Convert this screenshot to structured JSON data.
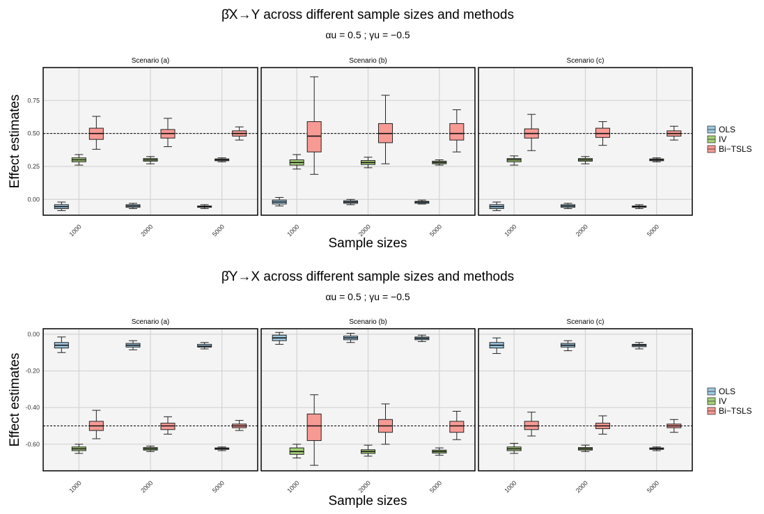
{
  "colors": {
    "OLS": "#9ec9e2",
    "IV": "#a6d279",
    "Bi-TSLS": "#f89a94",
    "panel_bg": "#f4f4f4",
    "grid": "#d3d3d3"
  },
  "chart_data": [
    {
      "type": "box",
      "title": "β̂X→Y across different sample sizes and methods",
      "subtitle": "αu = 0.5 ; γu = −0.5",
      "xlabel": "Sample sizes",
      "ylabel": "Effect estimates",
      "ylim": [
        -0.12,
        1.0
      ],
      "yticks": [
        0.0,
        0.25,
        0.5,
        0.75
      ],
      "ytick_labels": [
        "0.00",
        "0.25",
        "0.50",
        "0.75"
      ],
      "reference_line": 0.5,
      "categories": [
        "1000",
        "2000",
        "5000"
      ],
      "legend": [
        "OLS",
        "IV",
        "Bi−TSLS"
      ],
      "legend_position": "right",
      "panels": [
        {
          "title": "Scenario (a)",
          "series": [
            {
              "name": "OLS",
              "boxes": [
                [
                  -0.085,
                  -0.07,
                  -0.055,
                  -0.04,
                  -0.02
                ],
                [
                  -0.07,
                  -0.06,
                  -0.05,
                  -0.04,
                  -0.03
                ],
                [
                  -0.07,
                  -0.06,
                  -0.055,
                  -0.05,
                  -0.04
                ]
              ]
            },
            {
              "name": "IV",
              "boxes": [
                [
                  0.26,
                  0.285,
                  0.3,
                  0.315,
                  0.34
                ],
                [
                  0.27,
                  0.29,
                  0.3,
                  0.31,
                  0.325
                ],
                [
                  0.285,
                  0.293,
                  0.3,
                  0.307,
                  0.315
                ]
              ]
            },
            {
              "name": "Bi−TSLS",
              "boxes": [
                [
                  0.38,
                  0.455,
                  0.5,
                  0.54,
                  0.63
                ],
                [
                  0.4,
                  0.465,
                  0.5,
                  0.53,
                  0.615
                ],
                [
                  0.45,
                  0.48,
                  0.5,
                  0.52,
                  0.55
                ]
              ]
            }
          ]
        },
        {
          "title": "Scenario (b)",
          "series": [
            {
              "name": "OLS",
              "boxes": [
                [
                  -0.05,
                  -0.035,
                  -0.02,
                  -0.005,
                  0.015
                ],
                [
                  -0.04,
                  -0.03,
                  -0.02,
                  -0.01,
                  0.0
                ],
                [
                  -0.035,
                  -0.03,
                  -0.02,
                  -0.015,
                  -0.005
                ]
              ]
            },
            {
              "name": "IV",
              "boxes": [
                [
                  0.23,
                  0.26,
                  0.28,
                  0.3,
                  0.34
                ],
                [
                  0.24,
                  0.265,
                  0.28,
                  0.295,
                  0.32
                ],
                [
                  0.26,
                  0.27,
                  0.28,
                  0.29,
                  0.3
                ]
              ]
            },
            {
              "name": "Bi−TSLS",
              "boxes": [
                [
                  0.19,
                  0.36,
                  0.48,
                  0.59,
                  0.93
                ],
                [
                  0.27,
                  0.43,
                  0.5,
                  0.575,
                  0.79
                ],
                [
                  0.36,
                  0.45,
                  0.5,
                  0.575,
                  0.68
                ]
              ]
            }
          ]
        },
        {
          "title": "Scenario (c)",
          "series": [
            {
              "name": "OLS",
              "boxes": [
                [
                  -0.085,
                  -0.07,
                  -0.055,
                  -0.04,
                  -0.02
                ],
                [
                  -0.07,
                  -0.06,
                  -0.05,
                  -0.04,
                  -0.03
                ],
                [
                  -0.07,
                  -0.06,
                  -0.055,
                  -0.05,
                  -0.04
                ]
              ]
            },
            {
              "name": "IV",
              "boxes": [
                [
                  0.26,
                  0.285,
                  0.3,
                  0.31,
                  0.33
                ],
                [
                  0.27,
                  0.29,
                  0.3,
                  0.31,
                  0.325
                ],
                [
                  0.285,
                  0.293,
                  0.3,
                  0.307,
                  0.315
                ]
              ]
            },
            {
              "name": "Bi−TSLS",
              "boxes": [
                [
                  0.37,
                  0.465,
                  0.5,
                  0.535,
                  0.645
                ],
                [
                  0.41,
                  0.47,
                  0.5,
                  0.54,
                  0.59
                ],
                [
                  0.45,
                  0.48,
                  0.5,
                  0.52,
                  0.555
                ]
              ]
            }
          ]
        }
      ]
    },
    {
      "type": "box",
      "title": "β̂Y→X across different sample sizes and methods",
      "subtitle": "αu = 0.5 ; γu = −0.5",
      "xlabel": "Sample sizes",
      "ylabel": "Effect estimates",
      "ylim": [
        -0.745,
        0.03
      ],
      "yticks": [
        0.0,
        -0.2,
        -0.4,
        -0.6
      ],
      "ytick_labels": [
        "0.00",
        "-0.20",
        "-0.40",
        "-0.60"
      ],
      "reference_line": -0.5,
      "categories": [
        "1000",
        "2000",
        "5000"
      ],
      "legend": [
        "OLS",
        "IV",
        "Bi−TSLS"
      ],
      "legend_position": "right",
      "panels": [
        {
          "title": "Scenario (a)",
          "series": [
            {
              "name": "OLS",
              "boxes": [
                [
                  -0.1,
                  -0.075,
                  -0.06,
                  -0.045,
                  -0.015
                ],
                [
                  -0.085,
                  -0.07,
                  -0.06,
                  -0.05,
                  -0.035
                ],
                [
                  -0.08,
                  -0.07,
                  -0.065,
                  -0.055,
                  -0.045
                ]
              ]
            },
            {
              "name": "IV",
              "boxes": [
                [
                  -0.65,
                  -0.635,
                  -0.625,
                  -0.615,
                  -0.6
                ],
                [
                  -0.64,
                  -0.632,
                  -0.625,
                  -0.618,
                  -0.61
                ],
                [
                  -0.635,
                  -0.628,
                  -0.625,
                  -0.62,
                  -0.615
                ]
              ]
            },
            {
              "name": "Bi−TSLS",
              "boxes": [
                [
                  -0.57,
                  -0.525,
                  -0.5,
                  -0.475,
                  -0.415
                ],
                [
                  -0.545,
                  -0.52,
                  -0.5,
                  -0.485,
                  -0.45
                ],
                [
                  -0.525,
                  -0.51,
                  -0.5,
                  -0.49,
                  -0.47
                ]
              ]
            }
          ]
        },
        {
          "title": "Scenario (b)",
          "series": [
            {
              "name": "OLS",
              "boxes": [
                [
                  -0.055,
                  -0.035,
                  -0.02,
                  -0.005,
                  0.01
                ],
                [
                  -0.045,
                  -0.03,
                  -0.02,
                  -0.01,
                  0.005
                ],
                [
                  -0.04,
                  -0.03,
                  -0.022,
                  -0.015,
                  -0.005
                ]
              ]
            },
            {
              "name": "IV",
              "boxes": [
                [
                  -0.675,
                  -0.655,
                  -0.64,
                  -0.62,
                  -0.6
                ],
                [
                  -0.665,
                  -0.65,
                  -0.64,
                  -0.63,
                  -0.605
                ],
                [
                  -0.66,
                  -0.648,
                  -0.64,
                  -0.632,
                  -0.62
                ]
              ]
            },
            {
              "name": "Bi−TSLS",
              "boxes": [
                [
                  -0.715,
                  -0.58,
                  -0.5,
                  -0.435,
                  -0.33
                ],
                [
                  -0.6,
                  -0.535,
                  -0.5,
                  -0.465,
                  -0.38
                ],
                [
                  -0.575,
                  -0.535,
                  -0.5,
                  -0.475,
                  -0.42
                ]
              ]
            }
          ]
        },
        {
          "title": "Scenario (c)",
          "series": [
            {
              "name": "OLS",
              "boxes": [
                [
                  -0.105,
                  -0.075,
                  -0.06,
                  -0.045,
                  -0.02
                ],
                [
                  -0.09,
                  -0.07,
                  -0.06,
                  -0.05,
                  -0.035
                ],
                [
                  -0.08,
                  -0.068,
                  -0.06,
                  -0.055,
                  -0.045
                ]
              ]
            },
            {
              "name": "IV",
              "boxes": [
                [
                  -0.65,
                  -0.635,
                  -0.625,
                  -0.615,
                  -0.595
                ],
                [
                  -0.64,
                  -0.632,
                  -0.625,
                  -0.618,
                  -0.605
                ],
                [
                  -0.635,
                  -0.628,
                  -0.625,
                  -0.62,
                  -0.615
                ]
              ]
            },
            {
              "name": "Bi−TSLS",
              "boxes": [
                [
                  -0.555,
                  -0.52,
                  -0.5,
                  -0.475,
                  -0.425
                ],
                [
                  -0.545,
                  -0.515,
                  -0.5,
                  -0.485,
                  -0.445
                ],
                [
                  -0.535,
                  -0.51,
                  -0.5,
                  -0.49,
                  -0.465
                ]
              ]
            }
          ]
        }
      ]
    }
  ]
}
